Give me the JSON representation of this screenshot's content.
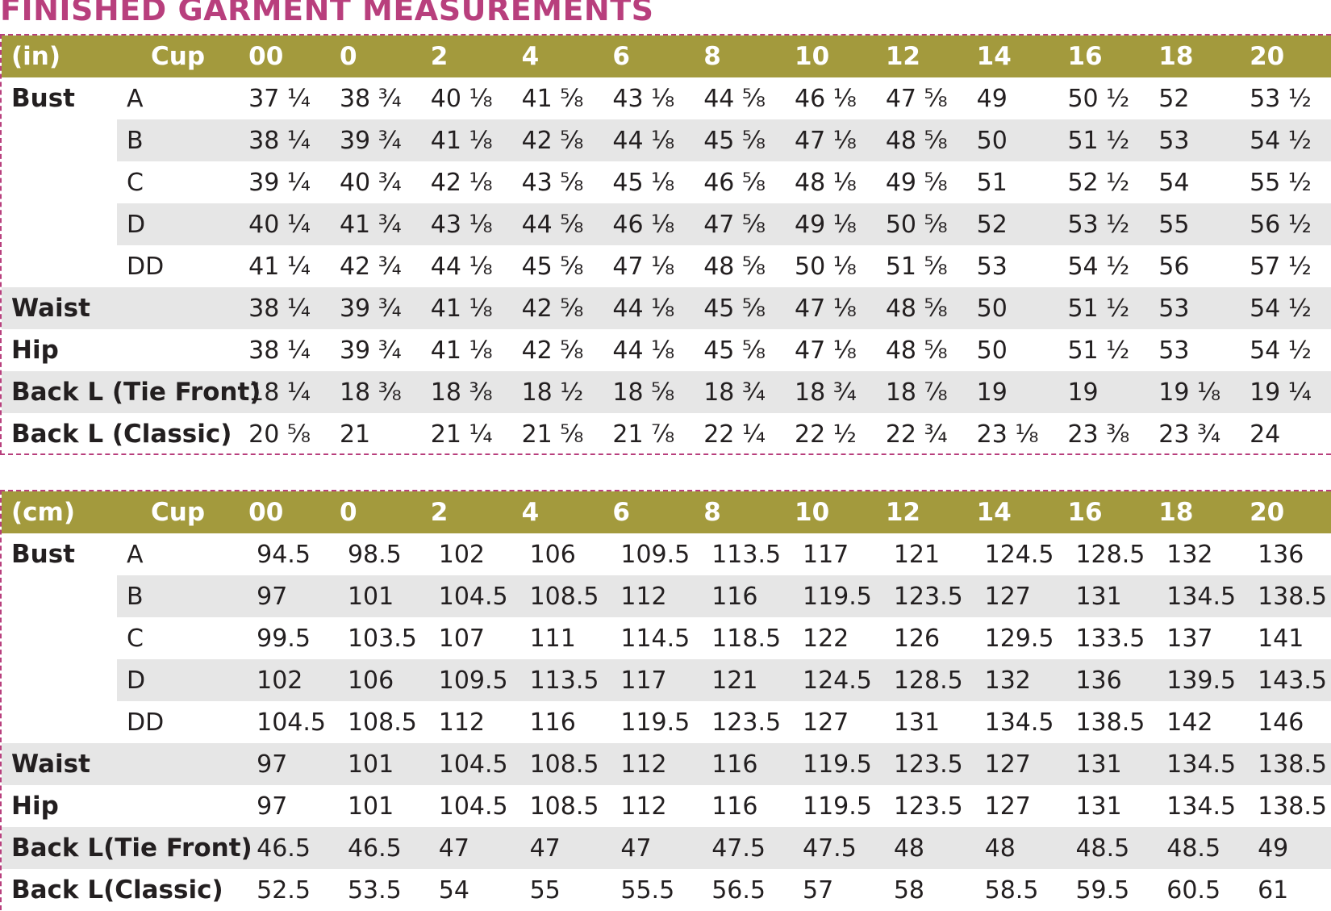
{
  "title": "FINISHED GARMENT MEASUREMENTS",
  "colors": {
    "title": "#b83f7d",
    "header_bg": "#a39a3d",
    "row_shade": "#e6e6e6",
    "dashes": "#b83f7d"
  },
  "tables": [
    {
      "unit": "(in)",
      "cup_header": "Cup",
      "sizes": [
        "00",
        "0",
        "2",
        "4",
        "6",
        "8",
        "10",
        "12",
        "14",
        "16",
        "18",
        "20"
      ],
      "rows": [
        {
          "label": "Bust",
          "cup": "A",
          "shade": false,
          "values": [
            "37 ¼",
            "38 ¾",
            "40 ⅛",
            "41 ⅝",
            "43 ⅛",
            "44 ⅝",
            "46 ⅛",
            "47 ⅝",
            "49",
            "50 ½",
            "52",
            "53 ½"
          ]
        },
        {
          "label": "",
          "cup": "B",
          "shade": true,
          "values": [
            "38 ¼",
            "39 ¾",
            "41 ⅛",
            "42 ⅝",
            "44 ⅛",
            "45 ⅝",
            "47 ⅛",
            "48 ⅝",
            "50",
            "51 ½",
            "53",
            "54 ½"
          ]
        },
        {
          "label": "",
          "cup": "C",
          "shade": false,
          "values": [
            "39 ¼",
            "40 ¾",
            "42 ⅛",
            "43 ⅝",
            "45 ⅛",
            "46 ⅝",
            "48 ⅛",
            "49 ⅝",
            "51",
            "52 ½",
            "54",
            "55 ½"
          ]
        },
        {
          "label": "",
          "cup": "D",
          "shade": true,
          "values": [
            "40 ¼",
            "41 ¾",
            "43 ⅛",
            "44 ⅝",
            "46 ⅛",
            "47 ⅝",
            "49 ⅛",
            "50 ⅝",
            "52",
            "53 ½",
            "55",
            "56 ½"
          ]
        },
        {
          "label": "",
          "cup": "DD",
          "shade": false,
          "values": [
            "41 ¼",
            "42 ¾",
            "44 ⅛",
            "45 ⅝",
            "47 ⅛",
            "48 ⅝",
            "50 ⅛",
            "51 ⅝",
            "53",
            "54 ½",
            "56",
            "57 ½"
          ]
        },
        {
          "label": "Waist",
          "cup": "",
          "shade": true,
          "values": [
            "38 ¼",
            "39 ¾",
            "41 ⅛",
            "42 ⅝",
            "44 ⅛",
            "45 ⅝",
            "47 ⅛",
            "48 ⅝",
            "50",
            "51 ½",
            "53",
            "54 ½"
          ]
        },
        {
          "label": "Hip",
          "cup": "",
          "shade": false,
          "values": [
            "38 ¼",
            "39 ¾",
            "41 ⅛",
            "42 ⅝",
            "44 ⅛",
            "45 ⅝",
            "47 ⅛",
            "48 ⅝",
            "50",
            "51 ½",
            "53",
            "54 ½"
          ]
        },
        {
          "label": "Back L (Tie Front)",
          "cup": "",
          "shade": true,
          "values": [
            "18 ¼",
            "18 ⅜",
            "18 ⅜",
            "18 ½",
            "18 ⅝",
            "18 ¾",
            "18 ¾",
            "18 ⅞",
            "19",
            "19",
            "19 ⅛",
            "19 ¼"
          ]
        },
        {
          "label": "Back L (Classic)",
          "cup": "",
          "shade": false,
          "values": [
            "20 ⅝",
            "21",
            "21 ¼",
            "21 ⅝",
            "21 ⅞",
            "22 ¼",
            "22 ½",
            "22 ¾",
            "23 ⅛",
            "23 ⅜",
            "23 ¾",
            "24"
          ]
        }
      ]
    },
    {
      "unit": "(cm)",
      "cup_header": "Cup",
      "sizes": [
        "00",
        "0",
        "2",
        "4",
        "6",
        "8",
        "10",
        "12",
        "14",
        "16",
        "18",
        "20"
      ],
      "rows": [
        {
          "label": "Bust",
          "cup": "A",
          "shade": false,
          "values": [
            "94.5",
            "98.5",
            "102",
            "106",
            "109.5",
            "113.5",
            "117",
            "121",
            "124.5",
            "128.5",
            "132",
            "136"
          ]
        },
        {
          "label": "",
          "cup": "B",
          "shade": true,
          "values": [
            "97",
            "101",
            "104.5",
            "108.5",
            "112",
            "116",
            "119.5",
            "123.5",
            "127",
            "131",
            "134.5",
            "138.5"
          ]
        },
        {
          "label": "",
          "cup": "C",
          "shade": false,
          "values": [
            "99.5",
            "103.5",
            "107",
            "111",
            "114.5",
            "118.5",
            "122",
            "126",
            "129.5",
            "133.5",
            "137",
            "141"
          ]
        },
        {
          "label": "",
          "cup": "D",
          "shade": true,
          "values": [
            "102",
            "106",
            "109.5",
            "113.5",
            "117",
            "121",
            "124.5",
            "128.5",
            "132",
            "136",
            "139.5",
            "143.5"
          ]
        },
        {
          "label": "",
          "cup": "DD",
          "shade": false,
          "values": [
            "104.5",
            "108.5",
            "112",
            "116",
            "119.5",
            "123.5",
            "127",
            "131",
            "134.5",
            "138.5",
            "142",
            "146"
          ]
        },
        {
          "label": "Waist",
          "cup": "",
          "shade": true,
          "values": [
            "97",
            "101",
            "104.5",
            "108.5",
            "112",
            "116",
            "119.5",
            "123.5",
            "127",
            "131",
            "134.5",
            "138.5"
          ]
        },
        {
          "label": "Hip",
          "cup": "",
          "shade": false,
          "values": [
            "97",
            "101",
            "104.5",
            "108.5",
            "112",
            "116",
            "119.5",
            "123.5",
            "127",
            "131",
            "134.5",
            "138.5"
          ]
        },
        {
          "label": "Back L(Tie Front)",
          "cup": "",
          "shade": true,
          "values": [
            "46.5",
            "46.5",
            "47",
            "47",
            "47",
            "47.5",
            "47.5",
            "48",
            "48",
            "48.5",
            "48.5",
            "49"
          ]
        },
        {
          "label": "Back L(Classic)",
          "cup": "",
          "shade": false,
          "values": [
            "52.5",
            "53.5",
            "54",
            "55",
            "55.5",
            "56.5",
            "57",
            "58",
            "58.5",
            "59.5",
            "60.5",
            "61"
          ]
        }
      ]
    }
  ]
}
